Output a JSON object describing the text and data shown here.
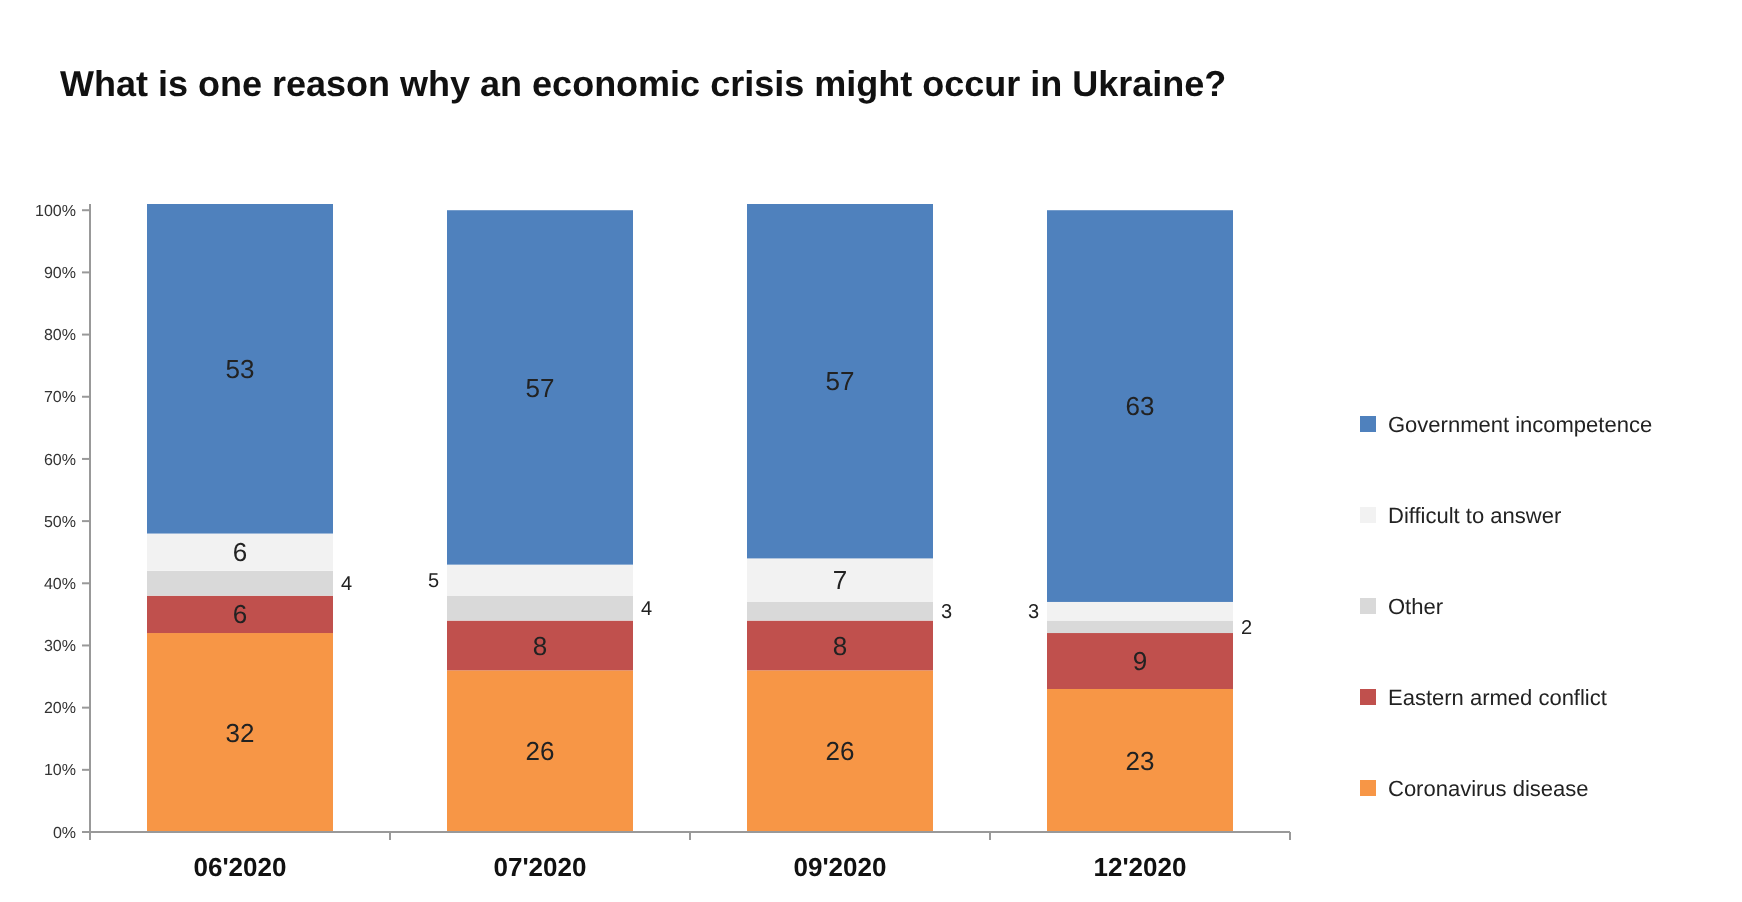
{
  "chart_data": {
    "type": "bar",
    "title": "What is one reason why an economic crisis might occur in Ukraine?",
    "categories": [
      "06'2020",
      "07'2020",
      "09'2020",
      "12'2020"
    ],
    "stacked": true,
    "data_labels": true,
    "legend": "right",
    "series": [
      {
        "name": "Coronavirus disease",
        "color": "#f79646",
        "values": [
          32,
          26,
          26,
          23
        ]
      },
      {
        "name": "Eastern armed conflict",
        "color": "#c0504d",
        "values": [
          6,
          8,
          8,
          9
        ]
      },
      {
        "name": "Other",
        "color": "#d9d9d9",
        "values": [
          4,
          4,
          3,
          2
        ]
      },
      {
        "name": "Difficult to answer",
        "color": "#f2f2f2",
        "values": [
          6,
          5,
          7,
          3
        ]
      },
      {
        "name": "Government incompetence",
        "color": "#4f81bd",
        "values": [
          53,
          57,
          57,
          63
        ]
      }
    ],
    "ylim": [
      0,
      101
    ],
    "yticks": [
      {
        "value": 0,
        "label": "0%"
      },
      {
        "value": 10,
        "label": "10%"
      },
      {
        "value": 20,
        "label": "20%"
      },
      {
        "value": 30,
        "label": "30%"
      },
      {
        "value": 40,
        "label": "40%"
      },
      {
        "value": 50,
        "label": "50%"
      },
      {
        "value": 60,
        "label": "60%"
      },
      {
        "value": 70,
        "label": "70%"
      },
      {
        "value": 80,
        "label": "80%"
      },
      {
        "value": 90,
        "label": "90%"
      },
      {
        "value": 100,
        "label": "100%"
      }
    ]
  }
}
